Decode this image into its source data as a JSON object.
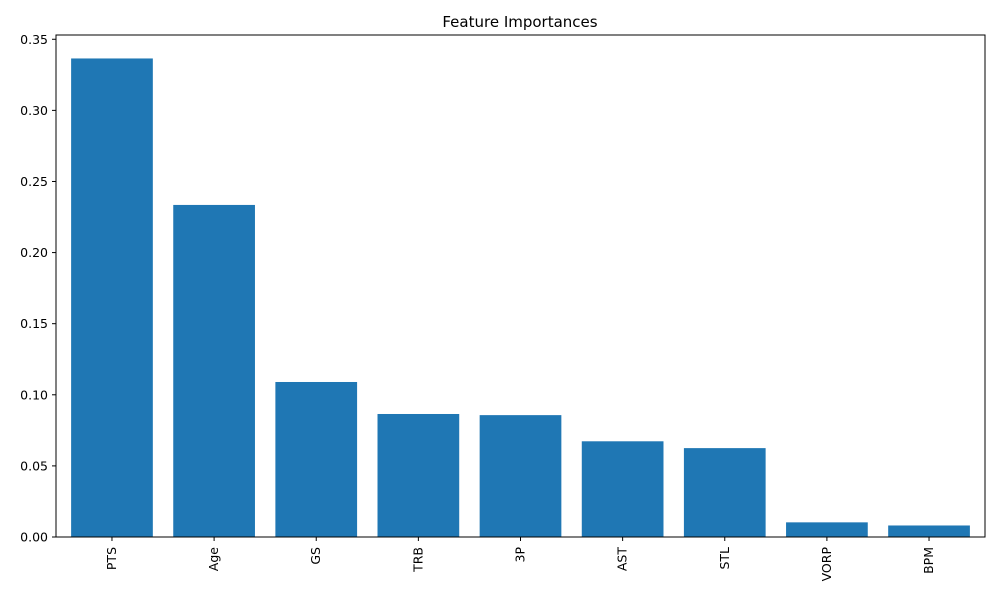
{
  "chart_data": {
    "type": "bar",
    "title": "Feature Importances",
    "xlabel": "",
    "ylabel": "",
    "categories": [
      "PTS",
      "Age",
      "GS",
      "TRB",
      "3P",
      "AST",
      "STL",
      "VORP",
      "BPM"
    ],
    "values": [
      0.3365,
      0.2335,
      0.109,
      0.0865,
      0.0857,
      0.0673,
      0.0625,
      0.0103,
      0.0081
    ],
    "ylim": [
      0,
      0.353
    ],
    "yticks": [
      0.0,
      0.05,
      0.1,
      0.15,
      0.2,
      0.25,
      0.3,
      0.35
    ],
    "ytick_labels": [
      "0.00",
      "0.05",
      "0.10",
      "0.15",
      "0.20",
      "0.25",
      "0.30",
      "0.35"
    ],
    "bar_color": "#1f77b4",
    "grid": false,
    "legend": false
  }
}
